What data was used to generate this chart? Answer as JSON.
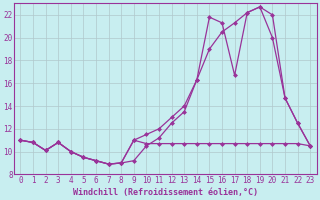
{
  "bg_color": "#c8eef0",
  "line_color": "#993399",
  "grid_color": "#b0c8cc",
  "xlabel": "Windchill (Refroidissement éolien,°C)",
  "xlim": [
    -0.5,
    23.5
  ],
  "ylim": [
    8,
    23
  ],
  "yticks": [
    8,
    10,
    12,
    14,
    16,
    18,
    20,
    22
  ],
  "xticks": [
    0,
    1,
    2,
    3,
    4,
    5,
    6,
    7,
    8,
    9,
    10,
    11,
    12,
    13,
    14,
    15,
    16,
    17,
    18,
    19,
    20,
    21,
    22,
    23
  ],
  "series1_x": [
    0,
    1,
    2,
    3,
    4,
    5,
    6,
    7,
    8,
    9,
    10,
    11,
    12,
    13,
    14,
    15,
    16,
    17,
    18,
    19,
    20,
    21,
    22,
    23
  ],
  "series1_y": [
    11.0,
    10.8,
    10.1,
    10.8,
    10.0,
    9.5,
    9.2,
    8.9,
    9.0,
    9.2,
    10.5,
    11.2,
    12.5,
    13.5,
    16.3,
    19.0,
    20.5,
    21.3,
    22.2,
    22.7,
    20.0,
    14.7,
    12.5,
    10.5
  ],
  "series2_x": [
    0,
    1,
    2,
    3,
    4,
    5,
    6,
    7,
    8,
    9,
    10,
    11,
    12,
    13,
    14,
    15,
    16,
    17,
    18,
    19,
    20,
    21,
    22,
    23
  ],
  "series2_y": [
    11.0,
    10.8,
    10.1,
    10.8,
    10.0,
    9.5,
    9.2,
    8.9,
    9.0,
    11.0,
    11.5,
    12.0,
    13.0,
    14.0,
    16.3,
    21.8,
    21.3,
    16.7,
    22.2,
    22.7,
    22.0,
    14.7,
    12.5,
    10.5
  ],
  "series3_x": [
    0,
    1,
    2,
    3,
    4,
    5,
    6,
    7,
    8,
    9,
    10,
    11,
    12,
    13,
    14,
    15,
    16,
    17,
    18,
    19,
    20,
    21,
    22,
    23
  ],
  "series3_y": [
    11.0,
    10.8,
    10.1,
    10.8,
    10.0,
    9.5,
    9.2,
    8.9,
    9.0,
    11.0,
    10.7,
    10.7,
    10.7,
    10.7,
    10.7,
    10.7,
    10.7,
    10.7,
    10.7,
    10.7,
    10.7,
    10.7,
    10.7,
    10.5
  ],
  "marker": "D",
  "marker_size": 2.5,
  "line_width": 0.9,
  "font_family": "monospace",
  "tick_fontsize": 5.5,
  "xlabel_fontsize": 6.0
}
